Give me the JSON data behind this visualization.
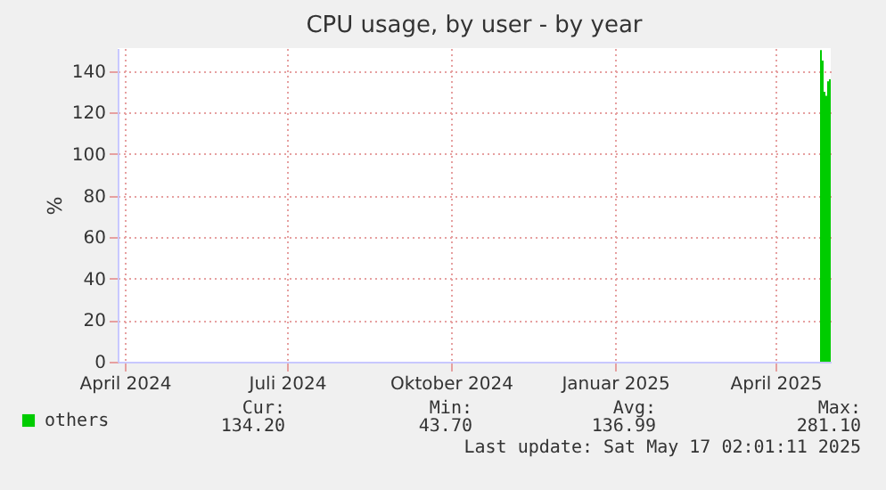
{
  "chart_data": {
    "type": "area",
    "title": "CPU usage, by user - by year",
    "ylabel": "%",
    "xlim": [
      "2024-04-12",
      "2025-05-17"
    ],
    "xticks": [
      {
        "value": "2024-04-16",
        "label": "April 2024"
      },
      {
        "value": "2024-07-16",
        "label": "Juli 2024"
      },
      {
        "value": "2024-10-16",
        "label": "Oktober 2024"
      },
      {
        "value": "2025-01-16",
        "label": "Januar 2025"
      },
      {
        "value": "2025-04-16",
        "label": "April 2025"
      }
    ],
    "ylim": [
      0,
      151
    ],
    "yticks": [
      0,
      20,
      40,
      60,
      80,
      100,
      120,
      140
    ],
    "x": [
      "2025-05-11",
      "2025-05-12",
      "2025-05-13",
      "2025-05-14",
      "2025-05-15",
      "2025-05-16",
      "2025-05-17"
    ],
    "series": [
      {
        "name": "others",
        "color": "#00cc00",
        "values": [
          150,
          145,
          130,
          128,
          135,
          136,
          134.2
        ]
      }
    ],
    "grid": true,
    "legend": "bottom left",
    "annotations": [
      "Cur:",
      "Min:",
      "Avg:",
      "Max:",
      "134.20",
      "43.70",
      "136.99",
      "281.10",
      "Last update: Sat May 17 02:01:11 2025"
    ]
  }
}
